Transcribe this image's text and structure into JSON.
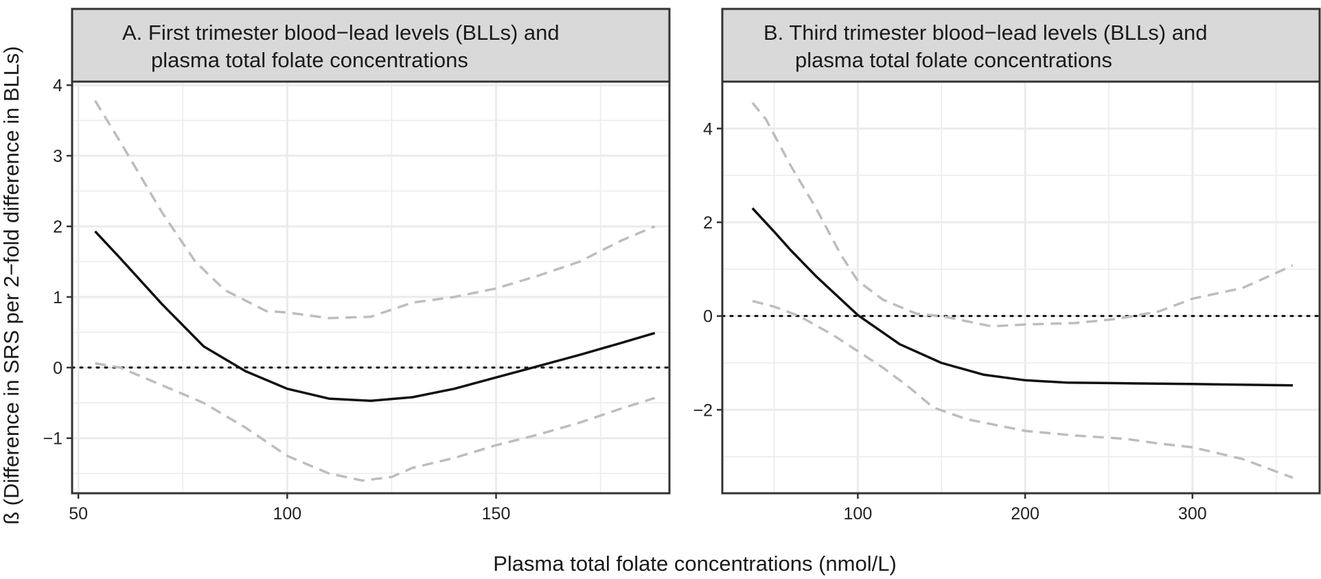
{
  "xlabel": "Plasma total folate concentrations (nmol/L)",
  "ylabel": "ß (Difference in SRS per 2−fold difference in BLLs)",
  "colors": {
    "estimate": "#111111",
    "ci": "#bdbdbd",
    "strip_bg": "#d9d9d9",
    "grid": "#ebebeb",
    "border": "#333333",
    "reference": "#111111"
  },
  "chart_data": [
    {
      "type": "line",
      "panel": "A",
      "title_line1": "A. First trimester blood−lead levels (BLLs) and",
      "title_line2": "plasma total folate concentrations",
      "xlim": [
        48.5,
        191.5
      ],
      "ylim": [
        -1.78,
        4.05
      ],
      "xticks": [
        50,
        100,
        150
      ],
      "yticks": [
        -1,
        0,
        1,
        2,
        3,
        4
      ],
      "reference_y": 0,
      "series": [
        {
          "name": "estimate",
          "x": [
            54,
            60,
            70,
            80,
            90,
            100,
            110,
            120,
            130,
            140,
            150,
            160,
            170,
            180,
            188
          ],
          "y": [
            1.93,
            1.55,
            0.9,
            0.3,
            -0.05,
            -0.3,
            -0.44,
            -0.47,
            -0.42,
            -0.3,
            -0.14,
            0.02,
            0.18,
            0.35,
            0.49
          ]
        },
        {
          "name": "upper_ci",
          "x": [
            54,
            60,
            70,
            78,
            85,
            95,
            100,
            110,
            120,
            130,
            140,
            150,
            160,
            170,
            180,
            188
          ],
          "y": [
            3.78,
            3.2,
            2.2,
            1.5,
            1.1,
            0.8,
            0.78,
            0.7,
            0.72,
            0.92,
            1.0,
            1.12,
            1.3,
            1.5,
            1.8,
            2.0
          ]
        },
        {
          "name": "lower_ci",
          "x": [
            54,
            60,
            70,
            80,
            90,
            100,
            110,
            118,
            125,
            130,
            140,
            150,
            160,
            170,
            180,
            188
          ],
          "y": [
            0.06,
            0.0,
            -0.25,
            -0.5,
            -0.85,
            -1.25,
            -1.5,
            -1.6,
            -1.55,
            -1.42,
            -1.28,
            -1.1,
            -0.95,
            -0.78,
            -0.58,
            -0.43
          ]
        }
      ]
    },
    {
      "type": "line",
      "panel": "B",
      "title_line1": "B. Third trimester blood−lead levels (BLLs) and",
      "title_line2": "plasma total folate concentrations",
      "xlim": [
        19,
        376
      ],
      "ylim": [
        -3.78,
        5.0
      ],
      "xticks": [
        100,
        200,
        300
      ],
      "yticks": [
        -2,
        0,
        2,
        4
      ],
      "reference_y": 0,
      "series": [
        {
          "name": "estimate",
          "x": [
            37,
            50,
            60,
            75,
            100,
            125,
            150,
            175,
            200,
            225,
            250,
            300,
            360
          ],
          "y": [
            2.3,
            1.8,
            1.4,
            0.85,
            0.02,
            -0.6,
            -1.0,
            -1.25,
            -1.37,
            -1.42,
            -1.43,
            -1.45,
            -1.48
          ]
        },
        {
          "name": "upper_ci",
          "x": [
            37,
            45,
            60,
            75,
            90,
            100,
            115,
            135,
            150,
            180,
            200,
            230,
            255,
            280,
            300,
            330,
            360
          ],
          "y": [
            4.55,
            4.2,
            3.2,
            2.3,
            1.3,
            0.75,
            0.35,
            0.05,
            0.0,
            -0.22,
            -0.18,
            -0.15,
            -0.06,
            0.1,
            0.37,
            0.6,
            1.08
          ]
        },
        {
          "name": "lower_ci",
          "x": [
            37,
            50,
            65,
            85,
            100,
            115,
            130,
            145,
            165,
            200,
            230,
            260,
            280,
            300,
            330,
            360
          ],
          "y": [
            0.32,
            0.2,
            0.0,
            -0.4,
            -0.75,
            -1.1,
            -1.5,
            -1.95,
            -2.2,
            -2.45,
            -2.55,
            -2.62,
            -2.72,
            -2.8,
            -3.05,
            -3.45
          ]
        }
      ]
    }
  ]
}
